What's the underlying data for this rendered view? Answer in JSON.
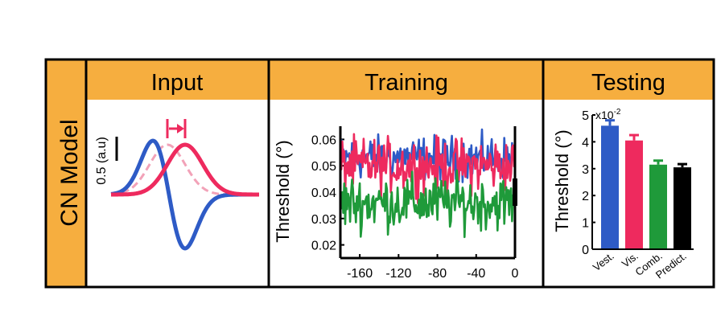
{
  "figure": {
    "row_label": "CN Model",
    "colors": {
      "header": "#F6AE3F",
      "vestibular": "#2E5BC6",
      "visual": "#EE2A5E",
      "visual_faded": "#F2A2B8",
      "combined": "#1F9A3A",
      "predicted": "#000000",
      "border": "#000000"
    }
  },
  "panels": {
    "input": {
      "title": "Input",
      "scale_label": "0.5 (a.u)"
    },
    "training": {
      "title": "Training"
    },
    "testing": {
      "title": "Testing"
    }
  },
  "chart_data": [
    {
      "type": "line",
      "panel": "input",
      "title": "Input",
      "xlabel": "",
      "ylabel": "",
      "series": [
        {
          "name": "vestibular",
          "shape": "derivative-of-gaussian",
          "color": "#2E5BC6"
        },
        {
          "name": "visual",
          "shape": "gaussian",
          "color": "#EE2A5E"
        },
        {
          "name": "visual (shifted, faded)",
          "shape": "gaussian",
          "color": "#F2A2B8"
        }
      ],
      "scale_bar": "0.5 (a.u)"
    },
    {
      "type": "line",
      "panel": "training",
      "title": "Training",
      "xlabel": "",
      "ylabel": "Threshold (°)",
      "xlim": [
        -180,
        0
      ],
      "ylim": [
        0.015,
        0.065
      ],
      "xticks": [
        -160,
        -120,
        -80,
        -40,
        0
      ],
      "yticks": [
        0.02,
        0.03,
        0.04,
        0.05,
        0.06
      ],
      "ytick_labels": [
        "0.02",
        "0.03",
        "0.04",
        "0.05",
        "0.06"
      ],
      "series": [
        {
          "name": "Vest.",
          "color": "#2E5BC6",
          "mean": 0.053,
          "spread": 0.004
        },
        {
          "name": "Vis.",
          "color": "#EE2A5E",
          "mean": 0.05,
          "spread": 0.005
        },
        {
          "name": "Comb.",
          "color": "#1F9A3A",
          "mean": 0.036,
          "spread": 0.005
        }
      ]
    },
    {
      "type": "bar",
      "panel": "testing",
      "title": "Testing",
      "ylabel": "Threshold (°)",
      "scale_label": "x10",
      "scale_exponent": "-2",
      "ylim": [
        0,
        5
      ],
      "yticks": [
        0,
        1,
        2,
        3,
        4,
        5
      ],
      "ytick_labels": [
        "0",
        "1",
        "2",
        "3",
        "4",
        "5"
      ],
      "categories": [
        "Vest.",
        "Vis.",
        "Comb.",
        "Predict."
      ],
      "values": [
        4.6,
        4.05,
        3.15,
        3.05
      ],
      "errors": [
        0.2,
        0.2,
        0.15,
        0.12
      ],
      "colors": [
        "#2E5BC6",
        "#EE2A5E",
        "#1F9A3A",
        "#000000"
      ]
    }
  ]
}
